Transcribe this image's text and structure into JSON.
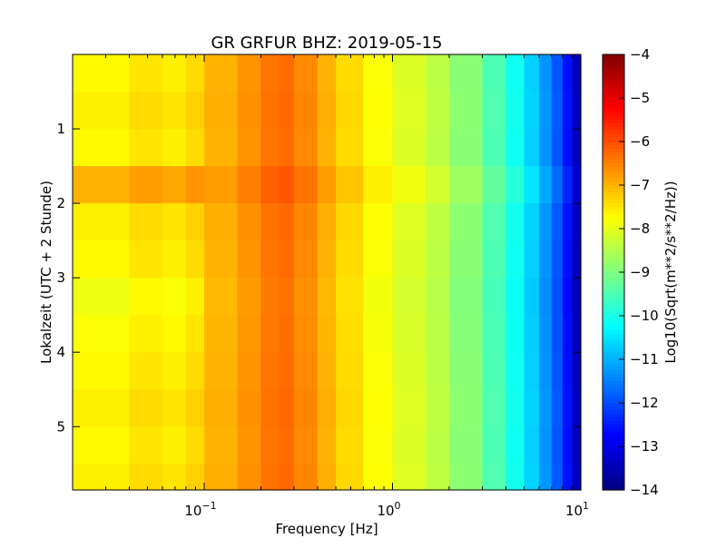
{
  "chart_data": {
    "type": "heatmap",
    "title": "GR GRFUR BHZ: 2019-05-15",
    "xlabel": "Frequency [Hz]",
    "ylabel": "Lokalzeit (UTC + 2 Stunde)",
    "x_scale": "log",
    "xlim": [
      0.02,
      10
    ],
    "ylim": [
      5.85,
      0
    ],
    "x_ticks": [
      {
        "value": 0.1,
        "base": "10",
        "exp": "−1"
      },
      {
        "value": 1,
        "base": "10",
        "exp": "0"
      },
      {
        "value": 10,
        "base": "10",
        "exp": "1"
      }
    ],
    "y_ticks": [
      {
        "value": 1,
        "label": "1"
      },
      {
        "value": 2,
        "label": "2"
      },
      {
        "value": 3,
        "label": "3"
      },
      {
        "value": 4,
        "label": "4"
      },
      {
        "value": 5,
        "label": "5"
      }
    ],
    "colorbar": {
      "label": "Log10(Sqrt(m**2/s**2/Hz))",
      "range": [
        -14,
        -4
      ],
      "colormap": "jet",
      "ticks": [
        {
          "value": -4,
          "label": "−4"
        },
        {
          "value": -5,
          "label": "−5"
        },
        {
          "value": -6,
          "label": "−6"
        },
        {
          "value": -7,
          "label": "−7"
        },
        {
          "value": -8,
          "label": "−8"
        },
        {
          "value": -9,
          "label": "−9"
        },
        {
          "value": -10,
          "label": "−10"
        },
        {
          "value": -11,
          "label": "−11"
        },
        {
          "value": -12,
          "label": "−12"
        },
        {
          "value": -13,
          "label": "−13"
        },
        {
          "value": -14,
          "label": "−14"
        }
      ]
    },
    "frequency_bins_hz": [
      0.02,
      0.04,
      0.06,
      0.08,
      0.1,
      0.15,
      0.2,
      0.25,
      0.3,
      0.4,
      0.5,
      0.7,
      1.0,
      1.5,
      2.0,
      3.0,
      4.0,
      5.0,
      6.0,
      7.0,
      8.0,
      9.0,
      10.0
    ],
    "mean_spectrum": [
      -7.7,
      -7.5,
      -7.6,
      -7.4,
      -7.0,
      -6.7,
      -6.4,
      -6.3,
      -6.6,
      -7.0,
      -7.4,
      -7.8,
      -8.1,
      -8.4,
      -8.9,
      -9.5,
      -10.1,
      -10.7,
      -11.3,
      -11.9,
      -12.6,
      -13.4
    ],
    "time_rows_hours": [
      0,
      0.5,
      1.0,
      1.5,
      2.0,
      2.5,
      3.0,
      3.5,
      4.0,
      4.5,
      5.0,
      5.5
    ],
    "row_offsets": [
      0.0,
      0.1,
      0.0,
      0.7,
      0.1,
      0.0,
      -0.2,
      -0.1,
      0.0,
      0.1,
      0.0,
      0.1
    ]
  }
}
